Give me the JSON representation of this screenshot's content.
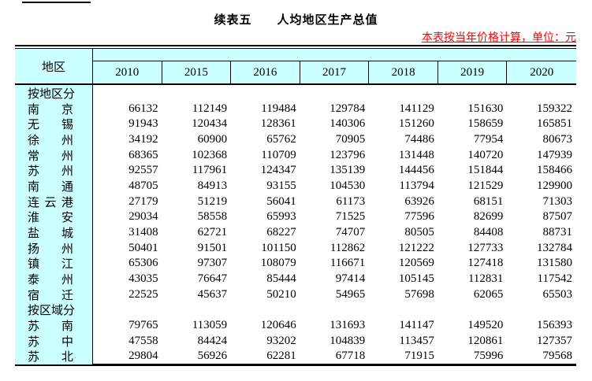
{
  "page": {
    "title": "续表五　　人均地区生产总值",
    "note": "本表按当年价格计算，单位：元",
    "note_color": "#ff0000",
    "header_bg": "#ccffff"
  },
  "table": {
    "corner_header": "地区",
    "year_headers": [
      "2010",
      "2015",
      "2016",
      "2017",
      "2018",
      "2019",
      "2020"
    ],
    "rows": [
      {
        "label": "按地区分",
        "type": "category",
        "values": []
      },
      {
        "label": "南京",
        "type": "region",
        "values": [
          "66132",
          "112149",
          "119484",
          "129784",
          "141129",
          "151630",
          "159322"
        ]
      },
      {
        "label": "无锡",
        "type": "region",
        "values": [
          "91943",
          "120434",
          "128361",
          "140306",
          "151260",
          "158659",
          "165851"
        ]
      },
      {
        "label": "徐州",
        "type": "region",
        "values": [
          "34192",
          "60900",
          "65762",
          "70905",
          "74486",
          "77954",
          "80673"
        ]
      },
      {
        "label": "常州",
        "type": "region",
        "values": [
          "68365",
          "102368",
          "110709",
          "123796",
          "131448",
          "140720",
          "147939"
        ]
      },
      {
        "label": "苏州",
        "type": "region",
        "values": [
          "92557",
          "117961",
          "124347",
          "135139",
          "144456",
          "151844",
          "158466"
        ]
      },
      {
        "label": "南通",
        "type": "region",
        "values": [
          "48705",
          "84913",
          "93155",
          "104530",
          "113794",
          "121529",
          "129900"
        ]
      },
      {
        "label": "连云港",
        "type": "region",
        "values": [
          "27179",
          "51219",
          "56041",
          "61173",
          "63926",
          "68151",
          "71303"
        ]
      },
      {
        "label": "淮安",
        "type": "region",
        "values": [
          "29034",
          "58558",
          "65993",
          "71525",
          "77596",
          "82699",
          "87507"
        ]
      },
      {
        "label": "盐城",
        "type": "region",
        "values": [
          "31408",
          "62721",
          "68227",
          "74707",
          "80505",
          "84408",
          "88731"
        ]
      },
      {
        "label": "扬州",
        "type": "region",
        "values": [
          "50401",
          "91501",
          "101150",
          "112862",
          "121222",
          "127733",
          "132784"
        ]
      },
      {
        "label": "镇江",
        "type": "region",
        "values": [
          "65306",
          "97307",
          "108079",
          "116671",
          "120569",
          "127418",
          "131580"
        ]
      },
      {
        "label": "泰州",
        "type": "region",
        "values": [
          "43035",
          "76647",
          "85444",
          "97414",
          "105145",
          "112831",
          "117542"
        ]
      },
      {
        "label": "宿迁",
        "type": "region",
        "values": [
          "22525",
          "45637",
          "50210",
          "54965",
          "57698",
          "62065",
          "65503"
        ]
      },
      {
        "label": "按区域分",
        "type": "category",
        "values": []
      },
      {
        "label": "苏南",
        "type": "region",
        "values": [
          "79765",
          "113059",
          "120646",
          "131693",
          "141147",
          "149520",
          "156393"
        ]
      },
      {
        "label": "苏中",
        "type": "region",
        "values": [
          "47558",
          "84424",
          "93202",
          "104839",
          "113457",
          "120861",
          "127357"
        ]
      },
      {
        "label": "苏北",
        "type": "region",
        "values": [
          "29804",
          "56926",
          "62281",
          "67718",
          "71915",
          "75996",
          "79568"
        ]
      }
    ]
  }
}
